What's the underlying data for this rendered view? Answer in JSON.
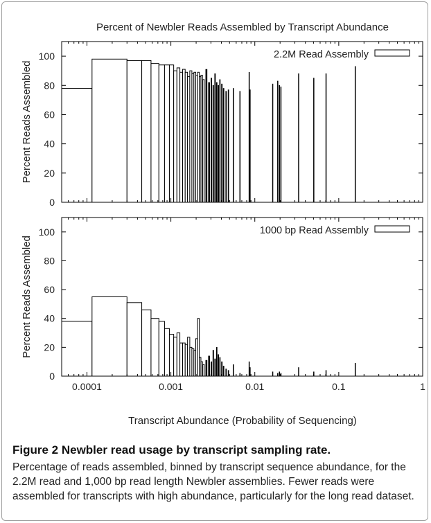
{
  "title": "Percent of Newbler Reads Assembled by Transcript Abundance",
  "xlabel": "Transcript Abundance (Probability of Sequencing)",
  "caption": {
    "title": "Figure 2 Newbler read usage by transcript sampling rate.",
    "body": "Percentage of reads assembled, binned by transcript sequence abundance, for the 2.2M read and 1,000 bp read length Newbler assemblies. Fewer reads were assembled for transcripts with high abundance, particularly for the long read dataset."
  },
  "chart_data": [
    {
      "type": "bar",
      "title": "Percent of Newbler Reads Assembled by Transcript Abundance",
      "xlabel": "Transcript Abundance (Probability of Sequencing)",
      "ylabel": "Percent Reads Assembled",
      "x_scale": "log",
      "xlim": [
        5e-05,
        1
      ],
      "ylim": [
        0,
        110
      ],
      "x_ticks": [
        0.0001,
        0.001,
        0.01,
        0.1,
        1
      ],
      "x_tick_labels": [
        "0.0001",
        "0.001",
        "0.01",
        "0.1",
        "1"
      ],
      "y_ticks": [
        0,
        20,
        40,
        60,
        80,
        100
      ],
      "legend": {
        "label": "2.2M Read Assembly",
        "position": "top-right"
      },
      "bars": [
        {
          "x0": 5e-05,
          "x1": 0.000115,
          "value": 78
        },
        {
          "x0": 0.000115,
          "x1": 0.0003,
          "value": 98
        },
        {
          "x0": 0.0003,
          "x1": 0.00045,
          "value": 97
        },
        {
          "x0": 0.00045,
          "x1": 0.00058,
          "value": 97
        },
        {
          "x0": 0.00058,
          "x1": 0.00072,
          "value": 95
        },
        {
          "x0": 0.00072,
          "x1": 0.00084,
          "value": 94
        },
        {
          "x0": 0.00084,
          "x1": 0.00096,
          "value": 94
        },
        {
          "x0": 0.00096,
          "x1": 0.00108,
          "value": 94
        },
        {
          "x0": 0.00108,
          "x1": 0.00118,
          "value": 90
        },
        {
          "x0": 0.00118,
          "x1": 0.00128,
          "value": 92
        },
        {
          "x0": 0.00128,
          "x1": 0.00138,
          "value": 89
        },
        {
          "x0": 0.00138,
          "x1": 0.00148,
          "value": 91
        },
        {
          "x0": 0.00148,
          "x1": 0.00158,
          "value": 89
        },
        {
          "x0": 0.00158,
          "x1": 0.00168,
          "value": 86
        },
        {
          "x0": 0.00168,
          "x1": 0.00178,
          "value": 90
        },
        {
          "x0": 0.00178,
          "x1": 0.00188,
          "value": 88
        },
        {
          "x0": 0.00188,
          "x1": 0.00198,
          "value": 89
        },
        {
          "x0": 0.00198,
          "x1": 0.00208,
          "value": 87
        },
        {
          "x0": 0.00208,
          "x1": 0.00218,
          "value": 89
        },
        {
          "x0": 0.00218,
          "x1": 0.00228,
          "value": 86
        },
        {
          "x0": 0.00228,
          "x1": 0.00238,
          "value": 87
        },
        {
          "x0": 0.0024,
          "x1": 0.0025,
          "value": 84
        },
        {
          "x0": 0.0026,
          "x1": 0.0027,
          "value": 91
        },
        {
          "x0": 0.0028,
          "x1": 0.0029,
          "value": 82
        },
        {
          "x0": 0.003,
          "x1": 0.00308,
          "value": 85
        },
        {
          "x0": 0.00316,
          "x1": 0.00324,
          "value": 80
        },
        {
          "x0": 0.00332,
          "x1": 0.0034,
          "value": 88
        },
        {
          "x0": 0.00348,
          "x1": 0.00356,
          "value": 82
        },
        {
          "x0": 0.00364,
          "x1": 0.00372,
          "value": 80
        },
        {
          "x0": 0.0038,
          "x1": 0.00388,
          "value": 84
        },
        {
          "x0": 0.004,
          "x1": 0.0041,
          "value": 81
        },
        {
          "x0": 0.0042,
          "x1": 0.0043,
          "value": 78
        },
        {
          "x0": 0.0045,
          "x1": 0.0046,
          "value": 76
        },
        {
          "x0": 0.0048,
          "x1": 0.0049,
          "value": 77
        },
        {
          "x0": 0.0055,
          "x1": 0.0056,
          "value": 78
        },
        {
          "x0": 0.0066,
          "x1": 0.0067,
          "value": 76
        },
        {
          "x0": 0.0085,
          "x1": 0.0086,
          "value": 89
        },
        {
          "x0": 0.0087,
          "x1": 0.0088,
          "value": 77
        },
        {
          "x0": 0.0162,
          "x1": 0.0164,
          "value": 81
        },
        {
          "x0": 0.0186,
          "x1": 0.0188,
          "value": 83
        },
        {
          "x0": 0.0195,
          "x1": 0.0197,
          "value": 80
        },
        {
          "x0": 0.0203,
          "x1": 0.0205,
          "value": 79
        },
        {
          "x0": 0.033,
          "x1": 0.0334,
          "value": 88
        },
        {
          "x0": 0.05,
          "x1": 0.0505,
          "value": 85
        },
        {
          "x0": 0.07,
          "x1": 0.0706,
          "value": 88
        },
        {
          "x0": 0.156,
          "x1": 0.1575,
          "value": 93
        }
      ]
    },
    {
      "type": "bar",
      "title": "",
      "xlabel": "Transcript Abundance (Probability of Sequencing)",
      "ylabel": "Percent Reads Assembled",
      "x_scale": "log",
      "xlim": [
        5e-05,
        1
      ],
      "ylim": [
        0,
        110
      ],
      "x_ticks": [
        0.0001,
        0.001,
        0.01,
        0.1,
        1
      ],
      "x_tick_labels": [
        "0.0001",
        "0.001",
        "0.01",
        "0.1",
        "1"
      ],
      "y_ticks": [
        0,
        20,
        40,
        60,
        80,
        100
      ],
      "legend": {
        "label": "1000 bp Read Assembly",
        "position": "top-right"
      },
      "bars": [
        {
          "x0": 5e-05,
          "x1": 0.000115,
          "value": 38
        },
        {
          "x0": 0.000115,
          "x1": 0.0003,
          "value": 55
        },
        {
          "x0": 0.0003,
          "x1": 0.00045,
          "value": 51
        },
        {
          "x0": 0.00045,
          "x1": 0.00058,
          "value": 46
        },
        {
          "x0": 0.00058,
          "x1": 0.00072,
          "value": 40
        },
        {
          "x0": 0.00072,
          "x1": 0.00084,
          "value": 38
        },
        {
          "x0": 0.00084,
          "x1": 0.00096,
          "value": 33
        },
        {
          "x0": 0.00096,
          "x1": 0.00108,
          "value": 29
        },
        {
          "x0": 0.00108,
          "x1": 0.00118,
          "value": 27
        },
        {
          "x0": 0.00118,
          "x1": 0.00128,
          "value": 30
        },
        {
          "x0": 0.00128,
          "x1": 0.00138,
          "value": 23
        },
        {
          "x0": 0.00138,
          "x1": 0.00148,
          "value": 23
        },
        {
          "x0": 0.00148,
          "x1": 0.00158,
          "value": 22
        },
        {
          "x0": 0.00158,
          "x1": 0.00168,
          "value": 27
        },
        {
          "x0": 0.00168,
          "x1": 0.00178,
          "value": 20
        },
        {
          "x0": 0.00178,
          "x1": 0.00188,
          "value": 19
        },
        {
          "x0": 0.00188,
          "x1": 0.00198,
          "value": 18
        },
        {
          "x0": 0.00198,
          "x1": 0.00208,
          "value": 26
        },
        {
          "x0": 0.00208,
          "x1": 0.00218,
          "value": 40
        },
        {
          "x0": 0.00218,
          "x1": 0.00228,
          "value": 13
        },
        {
          "x0": 0.00228,
          "x1": 0.00238,
          "value": 10
        },
        {
          "x0": 0.0024,
          "x1": 0.0025,
          "value": 8
        },
        {
          "x0": 0.0026,
          "x1": 0.0027,
          "value": 11
        },
        {
          "x0": 0.0028,
          "x1": 0.0029,
          "value": 14
        },
        {
          "x0": 0.003,
          "x1": 0.00308,
          "value": 10
        },
        {
          "x0": 0.00316,
          "x1": 0.00324,
          "value": 18
        },
        {
          "x0": 0.00332,
          "x1": 0.0034,
          "value": 12
        },
        {
          "x0": 0.00348,
          "x1": 0.00356,
          "value": 20
        },
        {
          "x0": 0.00364,
          "x1": 0.00372,
          "value": 15
        },
        {
          "x0": 0.0038,
          "x1": 0.00388,
          "value": 13
        },
        {
          "x0": 0.004,
          "x1": 0.0041,
          "value": 10
        },
        {
          "x0": 0.0042,
          "x1": 0.0043,
          "value": 7
        },
        {
          "x0": 0.0045,
          "x1": 0.0046,
          "value": 5
        },
        {
          "x0": 0.0048,
          "x1": 0.0049,
          "value": 4
        },
        {
          "x0": 0.0055,
          "x1": 0.0056,
          "value": 8
        },
        {
          "x0": 0.0066,
          "x1": 0.0067,
          "value": 2
        },
        {
          "x0": 0.0085,
          "x1": 0.0086,
          "value": 10
        },
        {
          "x0": 0.0087,
          "x1": 0.0088,
          "value": 6
        },
        {
          "x0": 0.0162,
          "x1": 0.0164,
          "value": 3
        },
        {
          "x0": 0.0186,
          "x1": 0.0188,
          "value": 2
        },
        {
          "x0": 0.0195,
          "x1": 0.0197,
          "value": 3
        },
        {
          "x0": 0.0203,
          "x1": 0.0205,
          "value": 2
        },
        {
          "x0": 0.033,
          "x1": 0.0334,
          "value": 6
        },
        {
          "x0": 0.05,
          "x1": 0.0505,
          "value": 3
        },
        {
          "x0": 0.07,
          "x1": 0.0706,
          "value": 4
        },
        {
          "x0": 0.156,
          "x1": 0.1575,
          "value": 9
        }
      ]
    }
  ]
}
